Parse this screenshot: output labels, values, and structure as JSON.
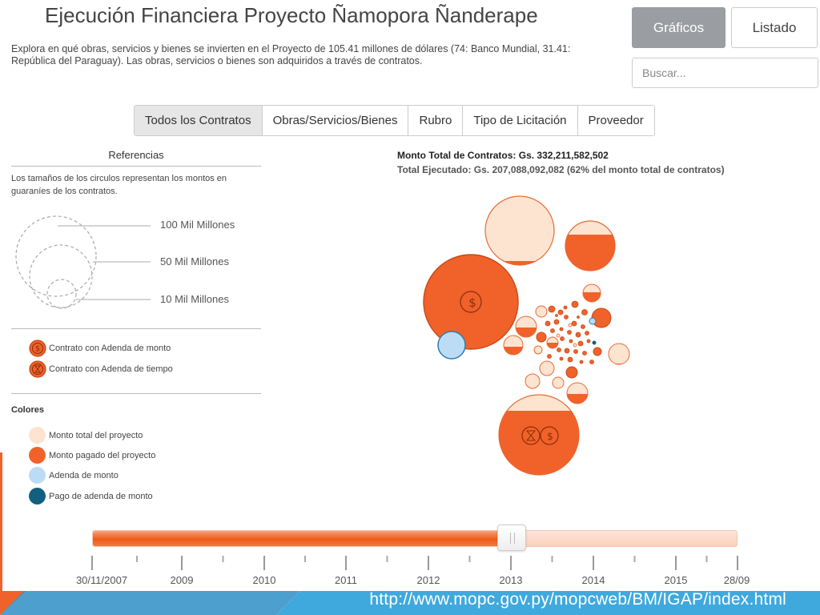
{
  "page_title": "Ejecución Financiera Proyecto Ñamopora Ñanderape",
  "description": "Explora en qué obras, servicios y bienes se invierten en el Proyecto de 105.41 millones de dólares (74: Banco Mundial, 31.41: República del Paraguay). Las obras, servicios o bienes son adquiridos a través de contratos.",
  "view_toggle": {
    "graficos": "Gráficos",
    "listado": "Listado"
  },
  "search": {
    "placeholder": "Buscar..."
  },
  "tabs": [
    {
      "label": "Todos los Contratos",
      "active": true
    },
    {
      "label": "Obras/Servicios/Bienes",
      "active": false
    },
    {
      "label": "Rubro",
      "active": false
    },
    {
      "label": "Tipo de Licitación",
      "active": false
    },
    {
      "label": "Proveedor",
      "active": false
    }
  ],
  "references": {
    "title": "Referencias",
    "size_description": "Los tamaños de los circulos representan los montos en guaraníes de los contratos.",
    "sizes": [
      {
        "label": "100 Mil Millones"
      },
      {
        "label": "50 Mil Millones"
      },
      {
        "label": "10 Mil Millones"
      }
    ],
    "icons": [
      {
        "label": "Contrato con Adenda de monto",
        "icon": "dollar-icon"
      },
      {
        "label": "Contrato con Adenda de tiempo",
        "icon": "hourglass-icon"
      }
    ],
    "colors_title": "Colores",
    "colors": [
      {
        "label": "Monto total del proyecto",
        "color": "#fde4d0"
      },
      {
        "label": "Monto pagado del proyecto",
        "color": "#f0622a"
      },
      {
        "label": "Adenda de monto",
        "color": "#bcdcf5"
      },
      {
        "label": "Pago de adenda de monto",
        "color": "#11607f"
      }
    ]
  },
  "chart": {
    "total_label": "Monto Total de Contratos: Gs. 332,211,582,502",
    "executed_label": "Total Ejecutado: Gs. 207,088,092,082 (62% del monto total de contratos)"
  },
  "timeline": {
    "labels": [
      "30/11/2007",
      "2009",
      "2010",
      "2011",
      "2012",
      "2013",
      "2014",
      "2015",
      "28/09"
    ],
    "position_fraction": 0.65
  },
  "footer": {
    "url": "http://www.mopc.gov.py/mopcweb/BM/IGAP/index.html",
    "color": "#3fa9dd",
    "accent": "#f0622a"
  }
}
